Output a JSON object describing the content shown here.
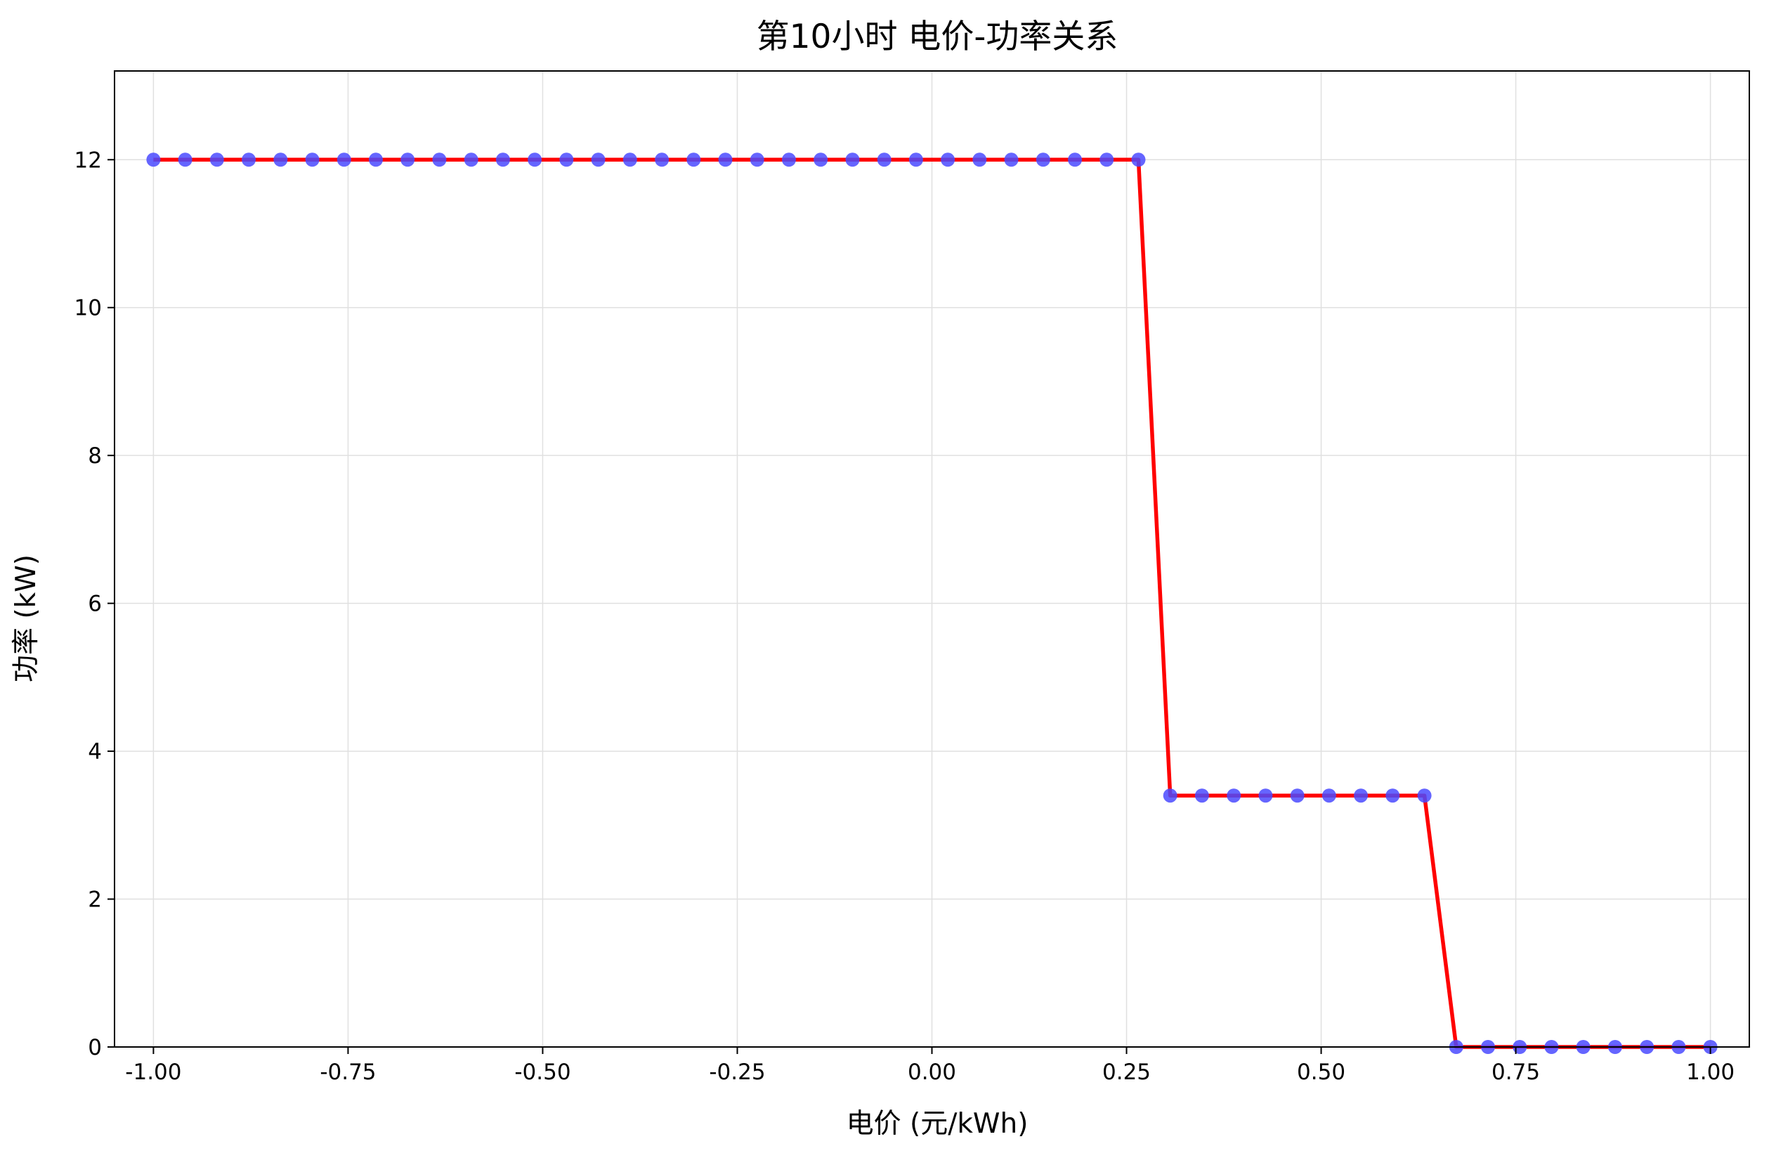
{
  "chart_data": {
    "type": "line",
    "title": "第10小时 电价-功率关系",
    "xlabel": "电价 (元/kWh)",
    "ylabel": "功率 (kW)",
    "xlim": [
      -1.05,
      1.05
    ],
    "ylim": [
      0,
      13.2
    ],
    "xticks": [
      -1.0,
      -0.75,
      -0.5,
      -0.25,
      0.0,
      0.25,
      0.5,
      0.75,
      1.0
    ],
    "xtick_labels": [
      "-1.00",
      "-0.75",
      "-0.50",
      "-0.25",
      "0.00",
      "0.25",
      "0.50",
      "0.75",
      "1.00"
    ],
    "yticks": [
      0,
      2,
      4,
      6,
      8,
      10,
      12
    ],
    "ytick_labels": [
      "0",
      "2",
      "4",
      "6",
      "8",
      "10",
      "12"
    ],
    "grid": true,
    "legend": "none",
    "colors": {
      "line": "#ff0000",
      "marker": "#4a4aff",
      "grid": "#e0e0e0",
      "axis": "#000000"
    },
    "x": [
      -1.0,
      -0.9592,
      -0.9184,
      -0.8776,
      -0.8367,
      -0.7959,
      -0.7551,
      -0.7143,
      -0.6735,
      -0.6327,
      -0.5918,
      -0.551,
      -0.5102,
      -0.4694,
      -0.4286,
      -0.3878,
      -0.3469,
      -0.3061,
      -0.2653,
      -0.2245,
      -0.1837,
      -0.1429,
      -0.102,
      -0.0612,
      -0.0204,
      0.0204,
      0.0612,
      0.102,
      0.1429,
      0.1837,
      0.2245,
      0.2653,
      0.3061,
      0.3469,
      0.3878,
      0.4286,
      0.4694,
      0.5102,
      0.551,
      0.5918,
      0.6327,
      0.6735,
      0.7143,
      0.7551,
      0.7959,
      0.8367,
      0.8776,
      0.9184,
      0.9592,
      1.0
    ],
    "series": [
      {
        "values": [
          12,
          12,
          12,
          12,
          12,
          12,
          12,
          12,
          12,
          12,
          12,
          12,
          12,
          12,
          12,
          12,
          12,
          12,
          12,
          12,
          12,
          12,
          12,
          12,
          12,
          12,
          12,
          12,
          12,
          12,
          12,
          12,
          3.4,
          3.4,
          3.4,
          3.4,
          3.4,
          3.4,
          3.4,
          3.4,
          3.4,
          0,
          0,
          0,
          0,
          0,
          0,
          0,
          0,
          0
        ]
      }
    ]
  }
}
